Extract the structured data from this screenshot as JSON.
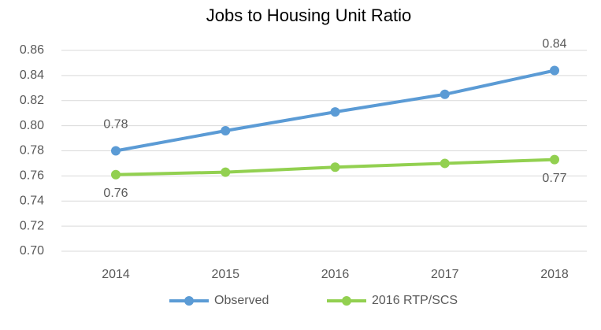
{
  "chart_data": {
    "type": "line",
    "title": "Jobs to Housing Unit Ratio",
    "categories": [
      "2014",
      "2015",
      "2016",
      "2017",
      "2018"
    ],
    "series": [
      {
        "name": "Observed",
        "color": "#5b9bd5",
        "values": [
          0.78,
          0.796,
          0.811,
          0.825,
          0.844
        ],
        "value_labels": [
          "0.78",
          null,
          null,
          null,
          "0.84"
        ]
      },
      {
        "name": "2016 RTP/SCS",
        "color": "#92d050",
        "values": [
          0.761,
          0.763,
          0.767,
          0.77,
          0.773
        ],
        "value_labels": [
          "0.76",
          null,
          null,
          null,
          "0.77"
        ]
      }
    ],
    "ylim": [
      0.7,
      0.86
    ],
    "yticks": [
      {
        "value": 0.7,
        "label": "0.70"
      },
      0.72,
      0.74,
      0.76,
      0.78,
      {
        "value": 0.8,
        "label": "0.80"
      },
      0.82,
      0.84,
      0.86
    ],
    "grid": true,
    "legend": "bottom"
  }
}
